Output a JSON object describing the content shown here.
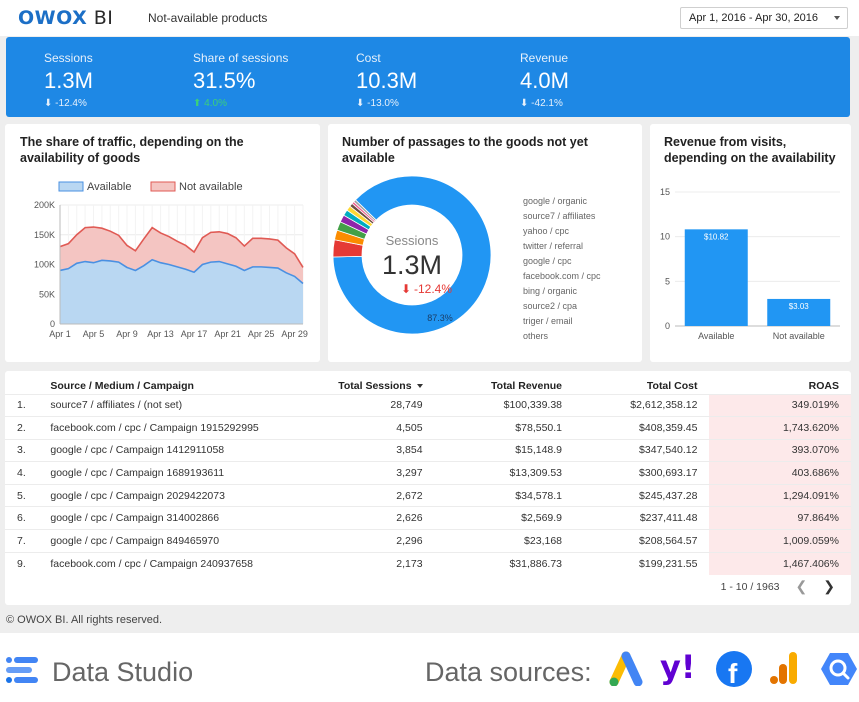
{
  "header": {
    "logo_main": "OWOX",
    "logo_suffix": " BI",
    "page_name": "Not-available products",
    "date_range": "Apr 1, 2016 - Apr 30, 2016"
  },
  "kpis": [
    {
      "label": "Sessions",
      "value": "1.3M",
      "delta": "-12.4%",
      "direction": "down"
    },
    {
      "label": "Share of sessions",
      "value": "31.5%",
      "delta": "4.0%",
      "direction": "up"
    },
    {
      "label": "Cost",
      "value": "10.3M",
      "delta": "-13.0%",
      "direction": "down"
    },
    {
      "label": "Revenue",
      "value": "4.0M",
      "delta": "-42.1%",
      "direction": "down"
    }
  ],
  "colors": {
    "primary_blue": "#1e88e5",
    "available_fill": "#b9d7f2",
    "available_line": "#4a90e2",
    "not_available_fill": "#f4c5c2",
    "not_available_line": "#e05a54",
    "negative_red": "#e53935",
    "roas_highlight": "#fde9ea"
  },
  "traffic_chart": {
    "title": "The share of traffic, depending on the availability of goods",
    "legend": [
      "Available",
      "Not available"
    ]
  },
  "passages_chart": {
    "title": "Number of passages to the goods not yet available",
    "center_label": "Sessions",
    "center_value": "1.3M",
    "center_delta": "-12.4%",
    "main_slice_label": "87.3%"
  },
  "revenue_chart": {
    "title": "Revenue from visits, depending on the availability"
  },
  "chart_data": [
    {
      "type": "area",
      "title": "The share of traffic, depending on the availability of goods",
      "x": [
        "Apr 1",
        "Apr 2",
        "Apr 3",
        "Apr 4",
        "Apr 5",
        "Apr 6",
        "Apr 7",
        "Apr 8",
        "Apr 9",
        "Apr 10",
        "Apr 11",
        "Apr 12",
        "Apr 13",
        "Apr 14",
        "Apr 15",
        "Apr 16",
        "Apr 17",
        "Apr 18",
        "Apr 19",
        "Apr 20",
        "Apr 21",
        "Apr 22",
        "Apr 23",
        "Apr 24",
        "Apr 25",
        "Apr 26",
        "Apr 27",
        "Apr 28",
        "Apr 29",
        "Apr 30"
      ],
      "x_ticks": [
        "Apr 1",
        "Apr 5",
        "Apr 9",
        "Apr 13",
        "Apr 17",
        "Apr 21",
        "Apr 25",
        "Apr 29"
      ],
      "series": [
        {
          "name": "Available",
          "values": [
            90000,
            93000,
            102000,
            105000,
            103000,
            107000,
            106000,
            104000,
            95000,
            90000,
            98000,
            108000,
            103000,
            100000,
            96000,
            92000,
            87000,
            100000,
            104000,
            105000,
            101000,
            97000,
            90000,
            96000,
            96000,
            95000,
            94000,
            86000,
            80000,
            68000
          ]
        },
        {
          "name": "Not available",
          "values": [
            40000,
            42000,
            48000,
            57000,
            60000,
            54000,
            50000,
            45000,
            37000,
            33000,
            45000,
            54000,
            50000,
            47000,
            43000,
            40000,
            34000,
            45000,
            50000,
            50000,
            51000,
            48000,
            41000,
            48000,
            48000,
            48000,
            47000,
            42000,
            38000,
            27000
          ]
        }
      ],
      "stacked": true,
      "ylim": [
        0,
        200000
      ],
      "y_ticks": [
        "0",
        "50K",
        "100K",
        "150K",
        "200K"
      ],
      "legend_position": "top",
      "grid": true
    },
    {
      "type": "pie",
      "title": "Number of passages to the goods not yet available",
      "labels": [
        "google / organic",
        "source7 / affiliates",
        "yahoo / cpc",
        "twitter / referral",
        "google / cpc",
        "facebook.com / cpc",
        "bing / organic",
        "source2 / cpa",
        "triger / email",
        "others"
      ],
      "values": [
        87.3,
        3.5,
        2.0,
        1.8,
        1.5,
        1.2,
        1.0,
        0.7,
        0.5,
        0.5
      ],
      "colors": [
        "#2196f3",
        "#e53935",
        "#fb8c00",
        "#43a047",
        "#8e24aa",
        "#00acc1",
        "#fdd835",
        "#6d4c41",
        "#f06292",
        "#9e9e9e"
      ],
      "donut": true
    },
    {
      "type": "bar",
      "title": "Revenue from visits, depending on the availability",
      "categories": [
        "Available",
        "Not available"
      ],
      "values": [
        10.82,
        3.03
      ],
      "data_labels": [
        "$10.82",
        "$3.03"
      ],
      "ylim": [
        0,
        15
      ],
      "y_ticks": [
        "0",
        "5",
        "10",
        "15"
      ]
    }
  ],
  "table": {
    "headers": {
      "source": "Source / Medium / Campaign",
      "sessions": "Total Sessions",
      "revenue": "Total Revenue",
      "cost": "Total Cost",
      "roas": "ROAS"
    },
    "rows": [
      {
        "idx": "1.",
        "source": "source7 / affiliates / (not set)",
        "sessions": "28,749",
        "revenue": "$100,339.38",
        "cost": "$2,612,358.12",
        "roas": "349.019%"
      },
      {
        "idx": "2.",
        "source": "facebook.com / cpc / Campaign 1915292995",
        "sessions": "4,505",
        "revenue": "$78,550.1",
        "cost": "$408,359.45",
        "roas": "1,743.620%"
      },
      {
        "idx": "3.",
        "source": "google / cpc / Campaign 1412911058",
        "sessions": "3,854",
        "revenue": "$15,148.9",
        "cost": "$347,540.12",
        "roas": "393.070%"
      },
      {
        "idx": "4.",
        "source": "google / cpc / Campaign 1689193611",
        "sessions": "3,297",
        "revenue": "$13,309.53",
        "cost": "$300,693.17",
        "roas": "403.686%"
      },
      {
        "idx": "5.",
        "source": "google / cpc / Campaign 2029422073",
        "sessions": "2,672",
        "revenue": "$34,578.1",
        "cost": "$245,437.28",
        "roas": "1,294.091%"
      },
      {
        "idx": "6.",
        "source": "google / cpc / Campaign 314002866",
        "sessions": "2,626",
        "revenue": "$2,569.9",
        "cost": "$237,411.48",
        "roas": "97.864%"
      },
      {
        "idx": "7.",
        "source": "google / cpc / Campaign 849465970",
        "sessions": "2,296",
        "revenue": "$23,168",
        "cost": "$208,564.57",
        "roas": "1,009.059%"
      },
      {
        "idx": "9.",
        "source": "facebook.com / cpc / Campaign 240937658",
        "sessions": "2,173",
        "revenue": "$31,886.73",
        "cost": "$199,231.55",
        "roas": "1,467.406%"
      }
    ],
    "pagination": "1 - 10 / 1963"
  },
  "copyright": "© OWOX BI. All rights reserved.",
  "footer": {
    "product": "Data Studio",
    "sources_label": "Data sources:",
    "source_icons": [
      "google-ads-icon",
      "yahoo-icon",
      "facebook-icon",
      "google-analytics-icon",
      "bigquery-icon"
    ]
  }
}
